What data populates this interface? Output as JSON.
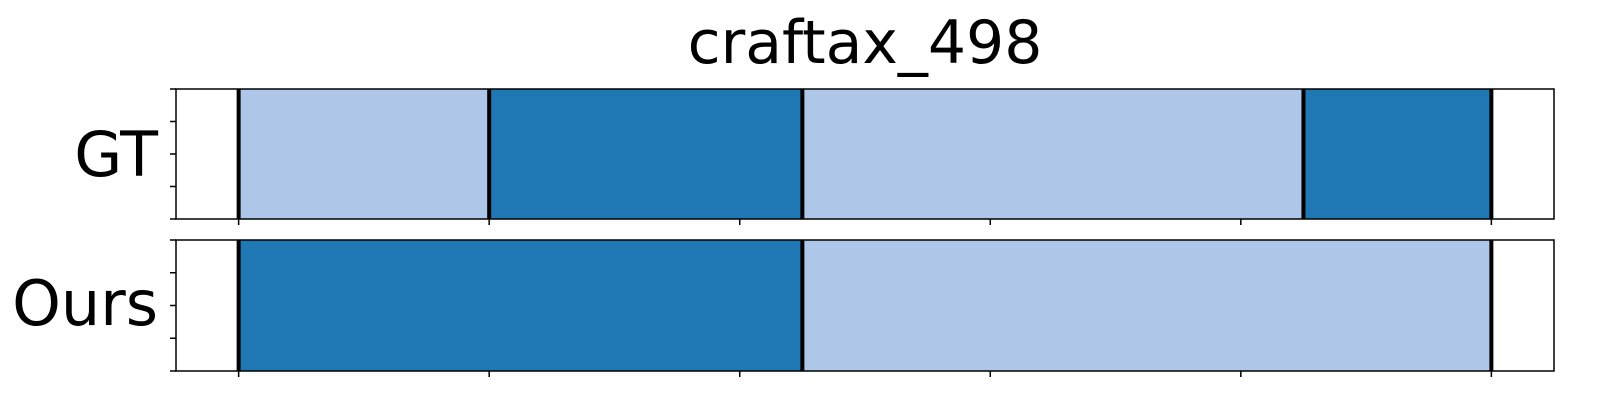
{
  "chart_data": {
    "type": "bar",
    "title": "craftax_498",
    "xlim": [
      -50,
      1050
    ],
    "x_ticks": [
      0,
      200,
      400,
      600,
      800,
      1000
    ],
    "tick_labels_visible": false,
    "rows": [
      {
        "label": "GT",
        "segments": [
          {
            "start": 0,
            "end": 200,
            "color": "#aec7e8"
          },
          {
            "start": 200,
            "end": 450,
            "color": "#1f77b4"
          },
          {
            "start": 450,
            "end": 850,
            "color": "#aec7e8"
          },
          {
            "start": 850,
            "end": 1000,
            "color": "#1f77b4"
          }
        ],
        "boundaries": [
          0,
          200,
          450,
          850,
          1000
        ]
      },
      {
        "label": "Ours",
        "segments": [
          {
            "start": 0,
            "end": 450,
            "color": "#1f77b4"
          },
          {
            "start": 450,
            "end": 1000,
            "color": "#aec7e8"
          }
        ],
        "boundaries": [
          0,
          450,
          1000
        ]
      }
    ],
    "colors": {
      "light": "#aec7e8",
      "dark": "#1f77b4",
      "boundary": "#000000"
    }
  }
}
